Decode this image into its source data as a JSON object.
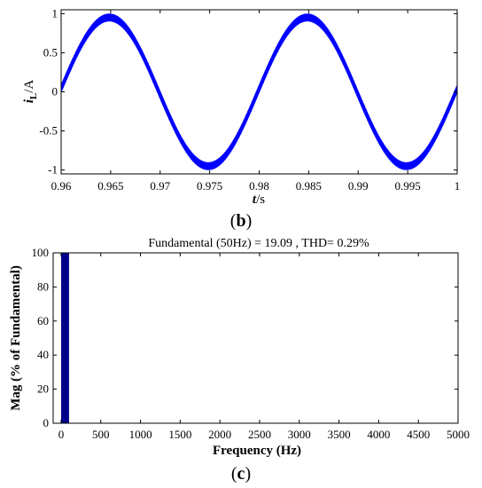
{
  "chart_data": [
    {
      "type": "line",
      "panel_label": "b",
      "title": "",
      "xlabel": "t/s",
      "ylabel": "iL/A",
      "xlim": [
        0.96,
        1.0
      ],
      "ylim": [
        -1.05,
        1.05
      ],
      "x_ticks": [
        0.96,
        0.965,
        0.97,
        0.975,
        0.98,
        0.985,
        0.99,
        0.995,
        1
      ],
      "x_tick_labels": [
        "0.96",
        "0.965",
        "0.97",
        "0.975",
        "0.98",
        "0.985",
        "0.99",
        "0.995",
        "1"
      ],
      "y_ticks": [
        -1,
        -0.5,
        0,
        0.5,
        1
      ],
      "y_tick_labels": [
        "-1",
        "-0.5",
        "0",
        "0.5",
        "1"
      ],
      "grid": false,
      "series": [
        {
          "color": "#0000ff",
          "waveform": "sine with high-frequency ripple",
          "frequency_hz": 50,
          "amplitude": 0.95,
          "ripple_peak_to_peak": 0.1,
          "x": [
            0.96,
            0.9625,
            0.965,
            0.9675,
            0.97,
            0.9725,
            0.975,
            0.9775,
            0.98,
            0.9825,
            0.985,
            0.9875,
            0.99,
            0.9925,
            0.995,
            0.9975,
            1.0
          ],
          "y": [
            0.05,
            0.7,
            0.95,
            0.67,
            0.0,
            -0.67,
            -0.95,
            -0.67,
            0.0,
            0.67,
            0.95,
            0.67,
            0.0,
            -0.67,
            -0.95,
            -0.67,
            0.05
          ]
        }
      ]
    },
    {
      "type": "bar",
      "panel_label": "c",
      "title": "Fundamental (50Hz) = 19.09 , THD= 0.29%",
      "xlabel": "Frequency (Hz)",
      "ylabel": "Mag (% of Fundamental)",
      "xlim": [
        -100,
        5000
      ],
      "ylim": [
        0,
        100
      ],
      "x_ticks": [
        0,
        500,
        1000,
        1500,
        2000,
        2500,
        3000,
        3500,
        4000,
        4500,
        5000
      ],
      "x_tick_labels": [
        "0",
        "500",
        "1000",
        "1500",
        "2000",
        "2500",
        "3000",
        "3500",
        "4000",
        "4500",
        "5000"
      ],
      "y_ticks": [
        0,
        20,
        40,
        60,
        80,
        100
      ],
      "y_tick_labels": [
        "0",
        "20",
        "40",
        "60",
        "80",
        "100"
      ],
      "grid": false,
      "bar_color": "#00008b",
      "bar_width_hz": 100,
      "x": [
        50
      ],
      "values": [
        100
      ]
    }
  ]
}
